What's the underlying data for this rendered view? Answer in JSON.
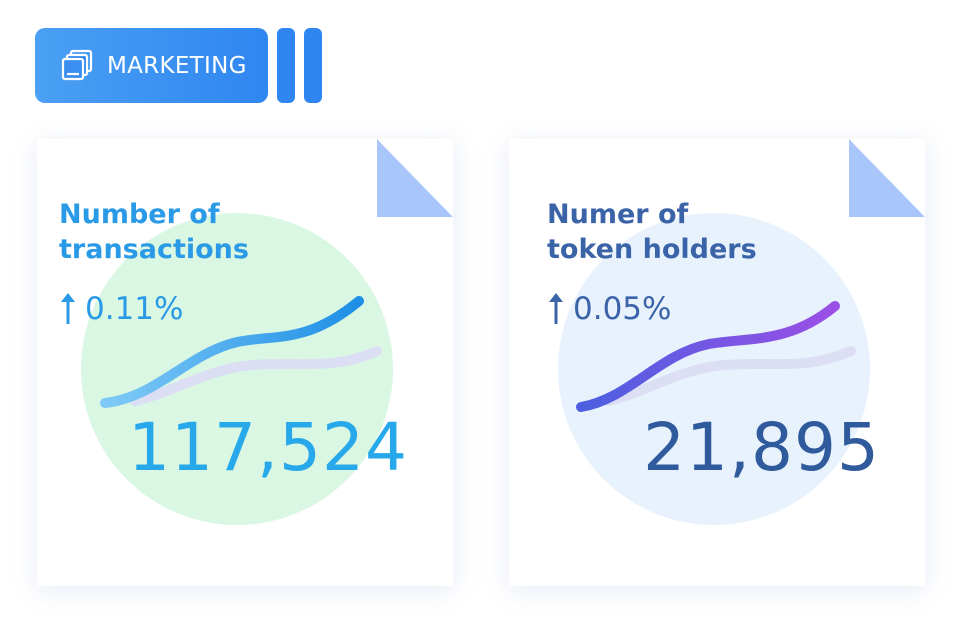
{
  "header": {
    "tag_label": "MARKETING",
    "tag_icon": "layers-icon",
    "colors": {
      "tag": "#2f86f0"
    }
  },
  "cards": [
    {
      "title_line1": "Number of",
      "title_line2": "transactions",
      "delta": "0.11%",
      "delta_icon": "arrow-up-icon",
      "value": "117,524",
      "colors": {
        "text": "#2a9ae6",
        "blob": "#d9f7e3",
        "value": "#26a8ea",
        "fold": "#a9c6fb"
      }
    },
    {
      "title_line1": "Numer of",
      "title_line2": "token holders",
      "delta": "0.05%",
      "delta_icon": "arrow-up-icon",
      "value": "21,895",
      "colors": {
        "text": "#3b64a8",
        "blob": "#e8f2fd",
        "value": "#2f5a9c",
        "fold": "#a9c6fb"
      }
    }
  ]
}
